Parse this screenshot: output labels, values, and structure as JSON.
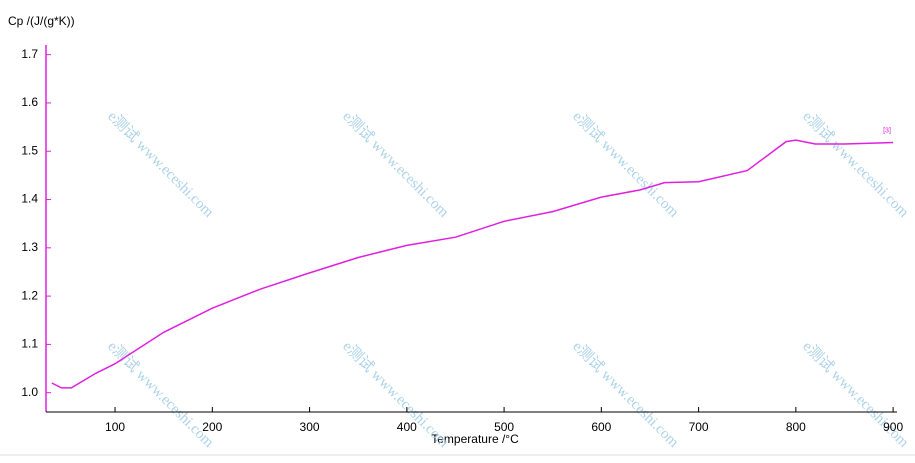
{
  "chart_data": {
    "type": "line",
    "y_label": "Cp /(J/(g*K))",
    "x_label": "Temperature /°C",
    "curve_label": "[3]",
    "watermark": "e测试 www.eceshi.com",
    "x": [
      35,
      45,
      55,
      80,
      100,
      150,
      200,
      250,
      300,
      350,
      400,
      450,
      500,
      550,
      600,
      640,
      665,
      700,
      750,
      770,
      790,
      800,
      820,
      850,
      900
    ],
    "series": [
      {
        "name": "[3]",
        "color": "#e020e0",
        "values": [
          1.02,
          1.01,
          1.01,
          1.04,
          1.06,
          1.125,
          1.175,
          1.215,
          1.248,
          1.28,
          1.305,
          1.322,
          1.355,
          1.375,
          1.405,
          1.42,
          1.435,
          1.437,
          1.46,
          1.49,
          1.52,
          1.523,
          1.515,
          1.515,
          1.518
        ]
      }
    ],
    "xlim": [
      29,
      904
    ],
    "ylim": [
      0.96,
      1.72
    ],
    "xticks": [
      100,
      200,
      300,
      400,
      500,
      600,
      700,
      800,
      900
    ],
    "yticks": [
      {
        "value": 1.0,
        "label": "1.0"
      },
      1.1,
      1.2,
      1.3,
      1.4,
      1.5,
      1.6,
      1.7
    ],
    "axis_color": "#e020e0"
  }
}
